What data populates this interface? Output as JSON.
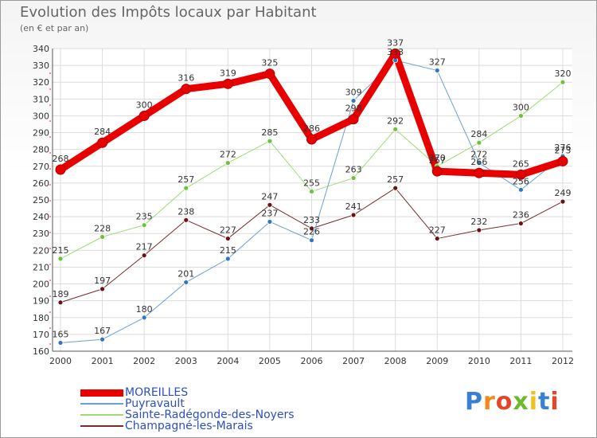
{
  "title": "Evolution des Impôts locaux par Habitant",
  "subtitle": "(en € et par an)",
  "brand": "Proxiti",
  "brand_colors": [
    "#3a7fd0",
    "#f08a1c",
    "#e4462c",
    "#6dbb2c",
    "#f0c11c",
    "#3a7fd0",
    "#e4462c"
  ],
  "chart_data": {
    "type": "line",
    "x": [
      "2000",
      "2001",
      "2002",
      "2003",
      "2004",
      "2005",
      "2006",
      "2007",
      "2008",
      "2009",
      "2010",
      "2011",
      "2012"
    ],
    "ylim": [
      160,
      340
    ],
    "yticks": [
      160,
      170,
      180,
      190,
      200,
      210,
      220,
      230,
      240,
      250,
      260,
      270,
      280,
      290,
      300,
      310,
      320,
      330,
      340
    ],
    "grid": true,
    "series": [
      {
        "name": "MOREILLES",
        "color": "#e80000",
        "marker": "#e80000",
        "values": [
          268,
          284,
          300,
          316,
          319,
          325,
          286,
          298,
          337,
          267,
          266,
          265,
          273
        ]
      },
      {
        "name": "Puyravault",
        "color": "#6aa0d0",
        "marker": "#2f78c0",
        "values": [
          165,
          167,
          180,
          201,
          215,
          237,
          226,
          309,
          333,
          327,
          272,
          256,
          276
        ]
      },
      {
        "name": "Sainte-Radégonde-des-Noyers",
        "color": "#9fdb70",
        "marker": "#6cc23a",
        "values": [
          215,
          228,
          235,
          257,
          272,
          285,
          255,
          263,
          292,
          270,
          284,
          300,
          320
        ]
      },
      {
        "name": "Champagné-les-Marais",
        "color": "#7a2a2a",
        "marker": "#6a1212",
        "values": [
          189,
          197,
          217,
          238,
          227,
          247,
          233,
          241,
          257,
          227,
          232,
          236,
          249
        ]
      }
    ],
    "data_labels": [
      [
        "268",
        "284",
        "300",
        "316",
        "319",
        "325",
        "286",
        "298",
        "337",
        "267",
        "266",
        "265",
        "273"
      ],
      [
        "165",
        "167",
        "180",
        "201",
        "215",
        "237",
        "226",
        "309",
        "333",
        "327",
        "272",
        "256",
        "276"
      ],
      [
        "215",
        "228",
        "235",
        "257",
        "272",
        "285",
        "255",
        "263",
        "292",
        "270",
        "284",
        "300",
        "320"
      ],
      [
        "189",
        "197",
        "217",
        "238",
        "227",
        "247",
        "233",
        "241",
        "257",
        "227",
        "232",
        "236",
        "249"
      ]
    ]
  }
}
